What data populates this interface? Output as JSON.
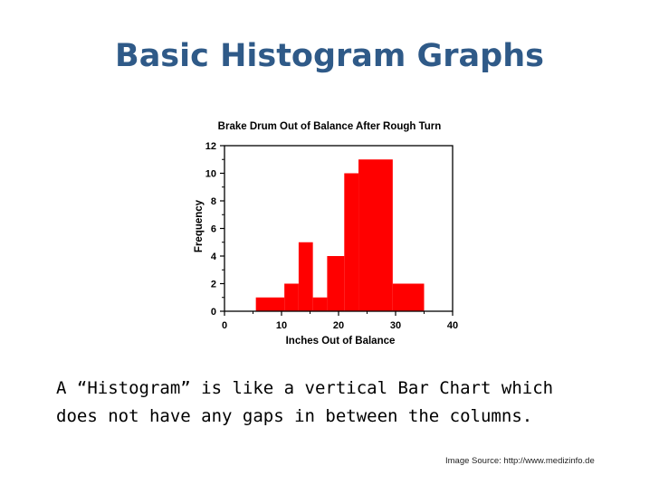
{
  "slide": {
    "title": "Basic Histogram Graphs",
    "caption_lines": [
      "A “Histogram” is like a vertical Bar Chart which",
      "does not have any gaps in between the columns."
    ],
    "source": "Image Source: http://www.medizinfo.de"
  },
  "colors": {
    "title": "#2f5a88",
    "bars": "#ff0000"
  },
  "chart_data": {
    "type": "bar",
    "title": "Brake Drum  Out of Balance After Rough Turn",
    "xlabel": "Inches Out of Balance",
    "ylabel": "Frequency",
    "xlim": [
      0,
      40
    ],
    "ylim": [
      0,
      12
    ],
    "x_ticks": [
      0,
      10,
      20,
      30,
      40
    ],
    "y_ticks": [
      0,
      2,
      4,
      6,
      8,
      10,
      12
    ],
    "bins": [
      {
        "start": 5.5,
        "end": 10.5,
        "count": 1
      },
      {
        "start": 10.5,
        "end": 13,
        "count": 2
      },
      {
        "start": 13,
        "end": 15.5,
        "count": 5
      },
      {
        "start": 15.5,
        "end": 18,
        "count": 1
      },
      {
        "start": 18,
        "end": 21,
        "count": 4
      },
      {
        "start": 21,
        "end": 23.5,
        "count": 10
      },
      {
        "start": 23.5,
        "end": 29.5,
        "count": 11
      },
      {
        "start": 29.5,
        "end": 35,
        "count": 2
      }
    ],
    "grid": false,
    "legend": "none"
  }
}
